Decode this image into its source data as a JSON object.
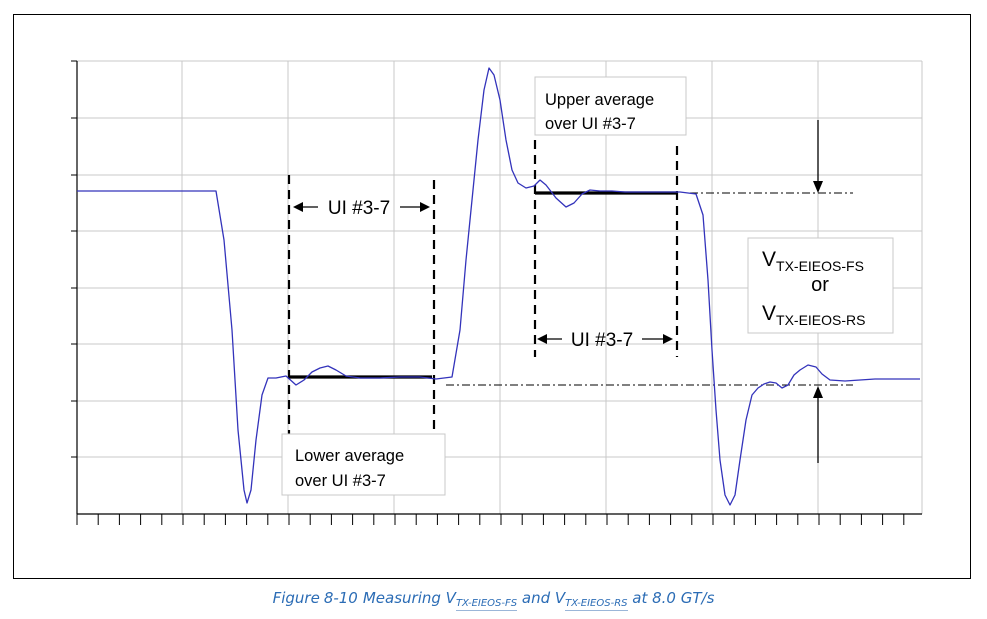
{
  "figure": {
    "trace_color": "#3333bb",
    "labels": {
      "ui_span_left": "UI #3-7",
      "ui_span_right": "UI #3-7",
      "upper_line1": "Upper average",
      "upper_line2": "over UI #3-7",
      "lower_line1": "Lower average",
      "lower_line2": "over UI #3-7",
      "v_main": "V",
      "v_sub_fs": "TX-EIEOS-FS",
      "v_or": "or",
      "v_sub_rs": "TX-EIEOS-RS"
    }
  },
  "caption": {
    "color": "#2b6cb5",
    "prefix": "Figure",
    "number": "8-10",
    "text_measuring": "Measuring V",
    "sub_fs": "TX-EIEOS-FS",
    "text_and": "and V",
    "sub_rs": "TX-EIEOS-RS",
    "text_suffix": "at 8.0 GT/s"
  }
}
